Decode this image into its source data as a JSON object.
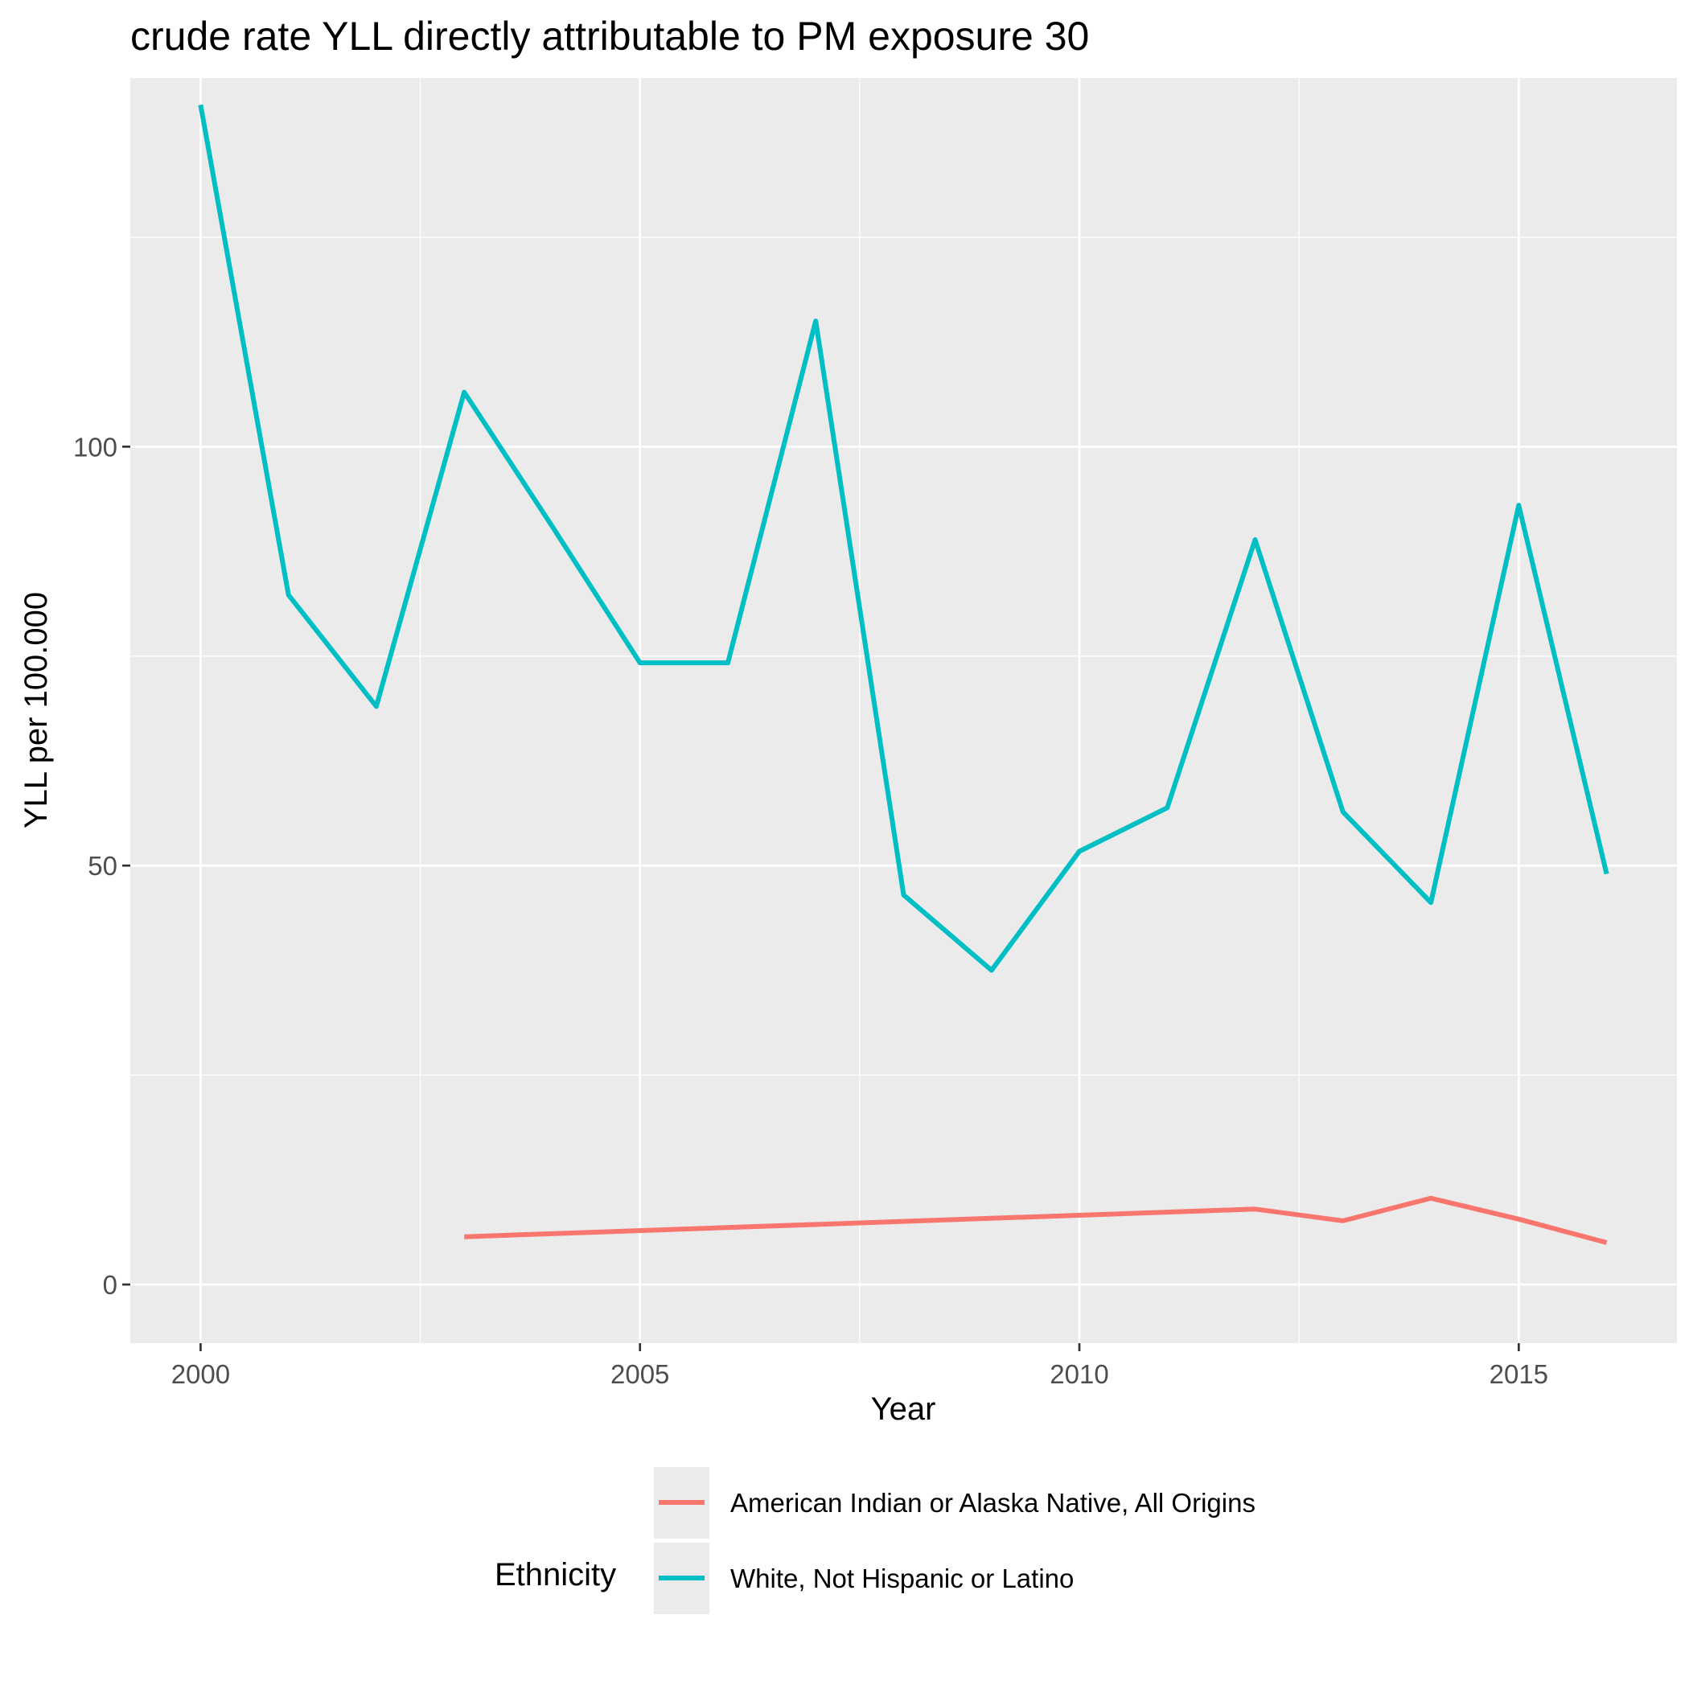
{
  "chart_data": {
    "type": "line",
    "title": "crude rate YLL directly attributable to PM exposure 30",
    "xlabel": "Year",
    "ylabel": "YLL per 100.000",
    "xlim": [
      1999.2,
      2016.8
    ],
    "ylim": [
      -7,
      144
    ],
    "x_ticks": [
      2000,
      2005,
      2010,
      2015
    ],
    "y_ticks": [
      0,
      50,
      100
    ],
    "legend": {
      "title": "Ethnicity",
      "position": "bottom"
    },
    "grid": true,
    "series": [
      {
        "name": "American Indian or Alaska Native, All Origins",
        "color": "#F8766D",
        "x": [
          2003,
          2012,
          2013,
          2014,
          2015,
          2016
        ],
        "y": [
          5.7,
          9.0,
          7.6,
          10.3,
          7.8,
          5.0
        ]
      },
      {
        "name": "White, Not Hispanic or Latino",
        "color": "#00BFC4",
        "x": [
          2000,
          2001,
          2002,
          2003,
          2004,
          2005,
          2006,
          2007,
          2008,
          2009,
          2010,
          2011,
          2012,
          2013,
          2014,
          2015,
          2016
        ],
        "y": [
          140.8,
          82.3,
          69.0,
          106.5,
          90.5,
          74.2,
          74.2,
          115.0,
          46.5,
          37.5,
          51.7,
          56.9,
          88.9,
          56.4,
          45.6,
          93.0,
          49.0
        ]
      }
    ]
  }
}
